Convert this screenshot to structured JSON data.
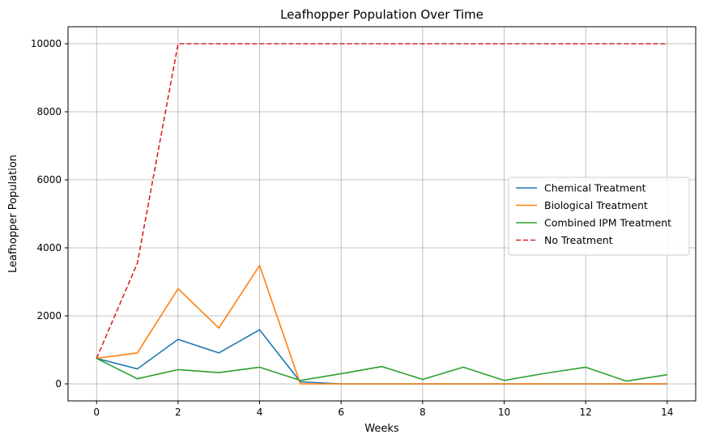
{
  "chart_data": {
    "type": "line",
    "title": "Leafhopper Population Over Time",
    "xlabel": "Weeks",
    "ylabel": "Leafhopper Population",
    "x": [
      0,
      1,
      2,
      3,
      4,
      5,
      6,
      7,
      8,
      9,
      10,
      11,
      12,
      13,
      14
    ],
    "xlim": [
      -0.7,
      14.7
    ],
    "ylim": [
      -500,
      10500
    ],
    "xticks": [
      0,
      2,
      4,
      6,
      8,
      10,
      12,
      14
    ],
    "yticks": [
      0,
      2000,
      4000,
      6000,
      8000,
      10000
    ],
    "grid": true,
    "legend_position": "center-right",
    "series": [
      {
        "name": "Chemical Treatment",
        "color": "#1f77b4",
        "linestyle": "solid",
        "values": [
          750,
          440,
          1310,
          910,
          1590,
          60,
          0,
          0,
          0,
          0,
          0,
          0,
          0,
          0,
          0
        ]
      },
      {
        "name": "Biological Treatment",
        "color": "#ff7f0e",
        "linestyle": "solid",
        "values": [
          750,
          910,
          2800,
          1640,
          3480,
          0,
          0,
          0,
          0,
          0,
          0,
          0,
          0,
          0,
          0
        ]
      },
      {
        "name": "Combined IPM Treatment",
        "color": "#2ca02c",
        "linestyle": "solid",
        "values": [
          750,
          150,
          420,
          330,
          490,
          100,
          300,
          510,
          130,
          490,
          100,
          310,
          490,
          80,
          270
        ]
      },
      {
        "name": "No Treatment",
        "color": "#d62728",
        "linestyle": "dashed",
        "values": [
          750,
          3550,
          10000,
          10000,
          10000,
          10000,
          10000,
          10000,
          10000,
          10000,
          10000,
          10000,
          10000,
          10000,
          10000
        ]
      }
    ]
  }
}
